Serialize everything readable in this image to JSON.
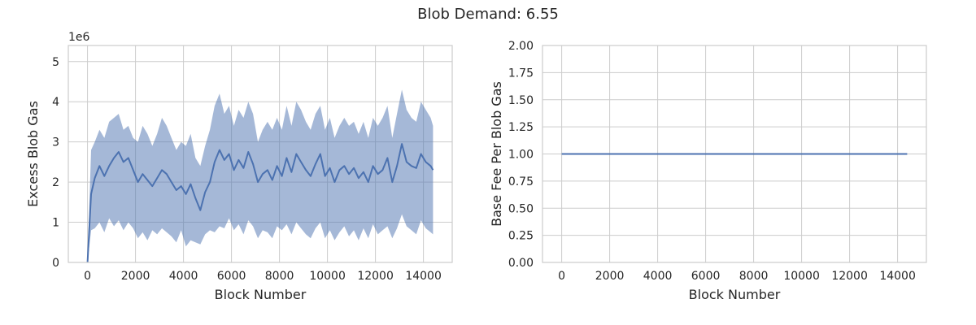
{
  "figure": {
    "title": "Blob Demand: 6.55"
  },
  "colors": {
    "line": "#4c72b0",
    "band": "#4c72b0",
    "grid": "#cccccc",
    "spine": "#cccccc",
    "text": "#262626"
  },
  "chart_data": [
    {
      "type": "line",
      "xlabel": "Block Number",
      "ylabel": "Excess Blob Gas",
      "y_scale_label": "1e6",
      "xlim": [
        -800,
        15200
      ],
      "ylim": [
        0,
        5.4
      ],
      "xticks": [
        0,
        2000,
        4000,
        6000,
        8000,
        10000,
        12000,
        14000
      ],
      "xtick_labels": [
        "0",
        "2000",
        "4000",
        "6000",
        "8000",
        "10000",
        "12000",
        "14000"
      ],
      "yticks": [
        0,
        1,
        2,
        3,
        4,
        5
      ],
      "ytick_labels": [
        "0",
        "1",
        "2",
        "3",
        "4",
        "5"
      ],
      "grid": true,
      "series": [
        {
          "x": [
            0,
            150,
            300,
            500,
            700,
            900,
            1100,
            1300,
            1500,
            1700,
            1900,
            2100,
            2300,
            2500,
            2700,
            2900,
            3100,
            3300,
            3500,
            3700,
            3900,
            4100,
            4300,
            4500,
            4700,
            4900,
            5100,
            5300,
            5500,
            5700,
            5900,
            6100,
            6300,
            6500,
            6700,
            6900,
            7100,
            7300,
            7500,
            7700,
            7900,
            8100,
            8300,
            8500,
            8700,
            8900,
            9100,
            9300,
            9500,
            9700,
            9900,
            10100,
            10300,
            10500,
            10700,
            10900,
            11100,
            11300,
            11500,
            11700,
            11900,
            12100,
            12300,
            12500,
            12700,
            12900,
            13100,
            13300,
            13500,
            13700,
            13900,
            14100,
            14300,
            14400
          ],
          "y": [
            0,
            1.7,
            2.1,
            2.4,
            2.15,
            2.4,
            2.6,
            2.75,
            2.5,
            2.6,
            2.3,
            2.0,
            2.2,
            2.05,
            1.9,
            2.1,
            2.3,
            2.2,
            2.0,
            1.8,
            1.9,
            1.7,
            1.95,
            1.6,
            1.3,
            1.75,
            2.0,
            2.5,
            2.8,
            2.55,
            2.7,
            2.3,
            2.55,
            2.35,
            2.75,
            2.45,
            2.0,
            2.2,
            2.3,
            2.05,
            2.4,
            2.15,
            2.6,
            2.25,
            2.7,
            2.5,
            2.3,
            2.15,
            2.45,
            2.7,
            2.15,
            2.35,
            2.0,
            2.3,
            2.4,
            2.2,
            2.35,
            2.1,
            2.25,
            2.0,
            2.4,
            2.2,
            2.3,
            2.6,
            2.0,
            2.4,
            2.95,
            2.5,
            2.4,
            2.35,
            2.7,
            2.5,
            2.4,
            2.3
          ],
          "lower": [
            0,
            0.8,
            0.85,
            1.0,
            0.75,
            1.1,
            0.9,
            1.05,
            0.8,
            1.0,
            0.85,
            0.6,
            0.75,
            0.55,
            0.8,
            0.7,
            0.85,
            0.75,
            0.65,
            0.5,
            0.8,
            0.4,
            0.55,
            0.5,
            0.45,
            0.7,
            0.8,
            0.75,
            0.9,
            0.85,
            1.1,
            0.8,
            0.95,
            0.7,
            1.05,
            0.9,
            0.6,
            0.8,
            0.75,
            0.6,
            0.9,
            0.8,
            0.95,
            0.7,
            1.0,
            0.85,
            0.7,
            0.6,
            0.85,
            1.0,
            0.6,
            0.8,
            0.55,
            0.75,
            0.9,
            0.65,
            0.8,
            0.55,
            0.85,
            0.6,
            0.95,
            0.7,
            0.8,
            0.9,
            0.6,
            0.85,
            1.2,
            0.9,
            0.8,
            0.7,
            1.05,
            0.85,
            0.75,
            0.7
          ],
          "upper": [
            0,
            2.8,
            3.0,
            3.3,
            3.1,
            3.5,
            3.6,
            3.7,
            3.3,
            3.4,
            3.1,
            3.0,
            3.4,
            3.2,
            2.9,
            3.2,
            3.6,
            3.4,
            3.1,
            2.8,
            3.0,
            2.9,
            3.2,
            2.6,
            2.4,
            2.9,
            3.3,
            3.9,
            4.2,
            3.7,
            3.9,
            3.4,
            3.8,
            3.6,
            4.0,
            3.7,
            3.0,
            3.3,
            3.5,
            3.3,
            3.6,
            3.3,
            3.9,
            3.4,
            4.0,
            3.8,
            3.5,
            3.3,
            3.7,
            3.9,
            3.3,
            3.6,
            3.1,
            3.4,
            3.6,
            3.4,
            3.5,
            3.2,
            3.5,
            3.1,
            3.6,
            3.4,
            3.6,
            3.9,
            3.1,
            3.7,
            4.3,
            3.8,
            3.6,
            3.5,
            4.0,
            3.8,
            3.6,
            3.4
          ]
        }
      ]
    },
    {
      "type": "line",
      "xlabel": "Block Number",
      "ylabel": "Base Fee Per Blob Gas",
      "xlim": [
        -800,
        15200
      ],
      "ylim": [
        0,
        2.0
      ],
      "xticks": [
        0,
        2000,
        4000,
        6000,
        8000,
        10000,
        12000,
        14000
      ],
      "xtick_labels": [
        "0",
        "2000",
        "4000",
        "6000",
        "8000",
        "10000",
        "12000",
        "14000"
      ],
      "yticks": [
        0,
        0.25,
        0.5,
        0.75,
        1.0,
        1.25,
        1.5,
        1.75,
        2.0
      ],
      "ytick_labels": [
        "0.00",
        "0.25",
        "0.50",
        "0.75",
        "1.00",
        "1.25",
        "1.50",
        "1.75",
        "2.00"
      ],
      "grid": true,
      "series": [
        {
          "x": [
            0,
            14400
          ],
          "y": [
            1.0,
            1.0
          ]
        }
      ]
    }
  ]
}
